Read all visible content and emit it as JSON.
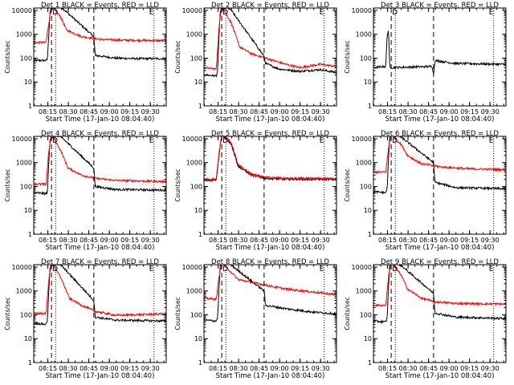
{
  "figure": {
    "title_template": "Det {n} BLACK = Events, RED = LLD",
    "xlabel": "Start Time (17-Jan-10 08:04:40)",
    "ylabel": "Counts/sec",
    "x_ticks": [
      "08:15",
      "08:30",
      "08:45",
      "09:00",
      "09:15",
      "09:30"
    ],
    "y_ticks": [
      "1",
      "10",
      "100",
      "1000",
      "10000"
    ],
    "markers": [
      "D",
      "E"
    ],
    "colors": {
      "events": "#000000",
      "lld": "#ff0000",
      "axes": "#000000",
      "background": "#ffffff"
    }
  },
  "chart_data": [
    {
      "type": "line",
      "title": "Det 1 BLACK = Events, RED = LLD",
      "det": "1",
      "xlabel": "Start Time (17-Jan-10 08:04:40)",
      "ylabel": "Counts/sec",
      "ylim": [
        1,
        10000
      ],
      "yscale": "log",
      "x_range_minutes": [
        0,
        97
      ],
      "dashed_lines_min": [
        13,
        44
      ],
      "dotted_lines_min": [
        16,
        88
      ],
      "series": [
        {
          "name": "BLACK = Events",
          "color": "#000000",
          "values_by_min": [
            [
              0,
              80
            ],
            [
              9,
              80
            ],
            [
              10,
              90
            ],
            [
              11,
              1000
            ],
            [
              12,
              10000
            ],
            [
              16,
              15000
            ],
            [
              20,
              14000
            ],
            [
              44,
              800
            ],
            [
              45,
              130
            ],
            [
              60,
              100
            ],
            [
              75,
              95
            ],
            [
              97,
              95
            ]
          ]
        },
        {
          "name": "RED = LLD",
          "color": "#ff0000",
          "values_by_min": [
            [
              0,
              450
            ],
            [
              9,
              450
            ],
            [
              11,
              3000
            ],
            [
              13,
              15000
            ],
            [
              20,
              5000
            ],
            [
              24,
              1500
            ],
            [
              35,
              800
            ],
            [
              50,
              600
            ],
            [
              70,
              560
            ],
            [
              97,
              540
            ]
          ]
        }
      ]
    },
    {
      "type": "line",
      "title": "Det 2 BLACK = Events, RED = LLD",
      "det": "2",
      "xlabel": "Start Time (17-Jan-10 08:04:40)",
      "ylabel": "Counts/sec",
      "ylim": [
        1,
        10000
      ],
      "yscale": "log",
      "x_range_minutes": [
        0,
        97
      ],
      "dashed_lines_min": [
        13,
        44
      ],
      "dotted_lines_min": [
        16,
        88
      ],
      "series": [
        {
          "name": "BLACK = Events",
          "color": "#000000",
          "values_by_min": [
            [
              0,
              20
            ],
            [
              9,
              18
            ],
            [
              10,
              30
            ],
            [
              11,
              1000
            ],
            [
              12,
              10000
            ],
            [
              16,
              14000
            ],
            [
              20,
              10000
            ],
            [
              44,
              120
            ],
            [
              45,
              60
            ],
            [
              55,
              35
            ],
            [
              70,
              28
            ],
            [
              85,
              33
            ],
            [
              97,
              25
            ]
          ]
        },
        {
          "name": "RED = LLD",
          "color": "#ff0000",
          "values_by_min": [
            [
              0,
              40
            ],
            [
              9,
              35
            ],
            [
              11,
              2000
            ],
            [
              13,
              15000
            ],
            [
              20,
              3000
            ],
            [
              26,
              300
            ],
            [
              35,
              150
            ],
            [
              45,
              100
            ],
            [
              60,
              55
            ],
            [
              70,
              40
            ],
            [
              85,
              55
            ],
            [
              97,
              45
            ]
          ]
        }
      ]
    },
    {
      "type": "line",
      "title": "Det 3 BLACK = Events, RED = LLD",
      "det": "3",
      "xlabel": "Start Time (17-Jan-10 08:04:40)",
      "ylabel": "Counts/sec",
      "ylim": [
        1,
        10000
      ],
      "yscale": "log",
      "x_range_minutes": [
        0,
        97
      ],
      "dashed_lines_min": [
        13,
        44
      ],
      "dotted_lines_min": [
        16,
        88
      ],
      "series": [
        {
          "name": "BLACK = Events",
          "color": "#000000",
          "values_by_min": [
            [
              0,
              40
            ],
            [
              9,
              45
            ],
            [
              10,
              900
            ],
            [
              11,
              1500
            ],
            [
              12,
              40
            ],
            [
              43,
              45
            ],
            [
              44,
              20
            ],
            [
              45,
              80
            ],
            [
              60,
              60
            ],
            [
              97,
              55
            ]
          ]
        }
      ]
    },
    {
      "type": "line",
      "title": "Det 4 BLACK = Events, RED = LLD",
      "det": "4",
      "xlabel": "Start Time (17-Jan-10 08:04:40)",
      "ylabel": "Counts/sec",
      "ylim": [
        1,
        10000
      ],
      "yscale": "log",
      "x_range_minutes": [
        0,
        97
      ],
      "dashed_lines_min": [
        13,
        44
      ],
      "dotted_lines_min": [
        16,
        88
      ],
      "series": [
        {
          "name": "BLACK = Events",
          "color": "#000000",
          "values_by_min": [
            [
              0,
              55
            ],
            [
              9,
              50
            ],
            [
              10,
              60
            ],
            [
              11,
              1000
            ],
            [
              12,
              10000
            ],
            [
              16,
              14000
            ],
            [
              20,
              12000
            ],
            [
              44,
              600
            ],
            [
              45,
              100
            ],
            [
              60,
              75
            ],
            [
              97,
              70
            ]
          ]
        },
        {
          "name": "RED = LLD",
          "color": "#ff0000",
          "values_by_min": [
            [
              0,
              130
            ],
            [
              9,
              120
            ],
            [
              11,
              3000
            ],
            [
              13,
              15000
            ],
            [
              20,
              3000
            ],
            [
              25,
              600
            ],
            [
              35,
              300
            ],
            [
              45,
              220
            ],
            [
              60,
              180
            ],
            [
              97,
              160
            ]
          ]
        }
      ]
    },
    {
      "type": "line",
      "title": "Det 5 BLACK = Events, RED = LLD",
      "det": "5",
      "xlabel": "Start Time (17-Jan-10 08:04:40)",
      "ylabel": "Counts/sec",
      "ylim": [
        1,
        10000
      ],
      "yscale": "log",
      "x_range_minutes": [
        0,
        97
      ],
      "dashed_lines_min": [
        13,
        44
      ],
      "dotted_lines_min": [
        16,
        88
      ],
      "series": [
        {
          "name": "BLACK = Events",
          "color": "#000000",
          "values_by_min": [
            [
              0,
              180
            ],
            [
              9,
              180
            ],
            [
              11,
              2000
            ],
            [
              13,
              15000
            ],
            [
              20,
              6000
            ],
            [
              25,
              700
            ],
            [
              35,
              300
            ],
            [
              45,
              220
            ],
            [
              60,
              200
            ],
            [
              97,
              200
            ]
          ]
        },
        {
          "name": "RED = LLD",
          "color": "#ff0000",
          "values_by_min": [
            [
              0,
              200
            ],
            [
              9,
              200
            ],
            [
              11,
              2500
            ],
            [
              13,
              15000
            ],
            [
              20,
              7000
            ],
            [
              25,
              800
            ],
            [
              35,
              320
            ],
            [
              45,
              240
            ],
            [
              60,
              220
            ],
            [
              97,
              210
            ]
          ]
        }
      ]
    },
    {
      "type": "line",
      "title": "Det 6 BLACK = Events, RED = LLD",
      "det": "6",
      "xlabel": "Start Time (17-Jan-10 08:04:40)",
      "ylabel": "Counts/sec",
      "ylim": [
        1,
        10000
      ],
      "yscale": "log",
      "x_range_minutes": [
        0,
        97
      ],
      "dashed_lines_min": [
        13,
        44
      ],
      "dotted_lines_min": [
        16,
        88
      ],
      "series": [
        {
          "name": "BLACK = Events",
          "color": "#000000",
          "values_by_min": [
            [
              0,
              60
            ],
            [
              9,
              55
            ],
            [
              10,
              80
            ],
            [
              11,
              1500
            ],
            [
              12,
              14000
            ],
            [
              16,
              15000
            ],
            [
              20,
              12000
            ],
            [
              44,
              1000
            ],
            [
              45,
              150
            ],
            [
              60,
              90
            ],
            [
              97,
              80
            ]
          ]
        },
        {
          "name": "RED = LLD",
          "color": "#ff0000",
          "values_by_min": [
            [
              0,
              400
            ],
            [
              9,
              400
            ],
            [
              11,
              4000
            ],
            [
              13,
              15000
            ],
            [
              20,
              6000
            ],
            [
              25,
              2000
            ],
            [
              35,
              900
            ],
            [
              50,
              650
            ],
            [
              70,
              550
            ],
            [
              97,
              500
            ]
          ]
        }
      ]
    },
    {
      "type": "line",
      "title": "Det 7 BLACK = Events, RED = LLD",
      "det": "7",
      "xlabel": "Start Time (17-Jan-10 08:04:40)",
      "ylabel": "Counts/sec",
      "ylim": [
        1,
        10000
      ],
      "yscale": "log",
      "x_range_minutes": [
        0,
        97
      ],
      "dashed_lines_min": [
        13,
        44
      ],
      "dotted_lines_min": [
        16,
        88
      ],
      "series": [
        {
          "name": "BLACK = Events",
          "color": "#000000",
          "values_by_min": [
            [
              0,
              45
            ],
            [
              9,
              40
            ],
            [
              10,
              60
            ],
            [
              11,
              1000
            ],
            [
              12,
              10000
            ],
            [
              16,
              14000
            ],
            [
              20,
              12000
            ],
            [
              44,
              400
            ],
            [
              45,
              80
            ],
            [
              60,
              60
            ],
            [
              97,
              55
            ]
          ]
        },
        {
          "name": "RED = LLD",
          "color": "#ff0000",
          "values_by_min": [
            [
              0,
              120
            ],
            [
              9,
              110
            ],
            [
              11,
              3000
            ],
            [
              13,
              15000
            ],
            [
              20,
              3500
            ],
            [
              26,
              500
            ],
            [
              35,
              250
            ],
            [
              45,
              140
            ],
            [
              60,
              95
            ],
            [
              97,
              110
            ]
          ]
        }
      ]
    },
    {
      "type": "line",
      "title": "Det 8 BLACK = Events, RED = LLD",
      "det": "8",
      "xlabel": "Start Time (17-Jan-10 08:04:40)",
      "ylabel": "Counts/sec",
      "ylim": [
        1,
        10000
      ],
      "yscale": "log",
      "x_range_minutes": [
        0,
        97
      ],
      "dashed_lines_min": [
        13,
        44
      ],
      "dotted_lines_min": [
        16,
        88
      ],
      "series": [
        {
          "name": "BLACK = Events",
          "color": "#000000",
          "values_by_min": [
            [
              0,
              60
            ],
            [
              9,
              55
            ],
            [
              10,
              80
            ],
            [
              11,
              1500
            ],
            [
              12,
              14000
            ],
            [
              16,
              15000
            ],
            [
              20,
              12000
            ],
            [
              44,
              1000
            ],
            [
              45,
              250
            ],
            [
              60,
              180
            ],
            [
              80,
              130
            ],
            [
              97,
              110
            ]
          ]
        },
        {
          "name": "RED = LLD",
          "color": "#ff0000",
          "values_by_min": [
            [
              0,
              500
            ],
            [
              9,
              450
            ],
            [
              11,
              4000
            ],
            [
              13,
              15000
            ],
            [
              20,
              6000
            ],
            [
              25,
              3000
            ],
            [
              40,
              2000
            ],
            [
              60,
              1200
            ],
            [
              80,
              900
            ],
            [
              97,
              700
            ]
          ]
        }
      ]
    },
    {
      "type": "line",
      "title": "Det 9 BLACK = Events, RED = LLD",
      "det": "9",
      "xlabel": "Start Time (17-Jan-10 08:04:40)",
      "ylabel": "Counts/sec",
      "ylim": [
        1,
        10000
      ],
      "yscale": "log",
      "x_range_minutes": [
        0,
        97
      ],
      "dashed_lines_min": [
        13,
        44
      ],
      "dotted_lines_min": [
        16,
        88
      ],
      "series": [
        {
          "name": "BLACK = Events",
          "color": "#000000",
          "values_by_min": [
            [
              0,
              55
            ],
            [
              9,
              50
            ],
            [
              10,
              70
            ],
            [
              11,
              1500
            ],
            [
              12,
              14000
            ],
            [
              16,
              15000
            ],
            [
              20,
              12000
            ],
            [
              44,
              800
            ],
            [
              45,
              120
            ],
            [
              60,
              80
            ],
            [
              97,
              70
            ]
          ]
        },
        {
          "name": "RED = LLD",
          "color": "#ff0000",
          "values_by_min": [
            [
              0,
              250
            ],
            [
              9,
              250
            ],
            [
              11,
              4000
            ],
            [
              13,
              15000
            ],
            [
              20,
              5000
            ],
            [
              25,
              1200
            ],
            [
              35,
              500
            ],
            [
              45,
              350
            ],
            [
              60,
              300
            ],
            [
              97,
              280
            ]
          ]
        }
      ]
    }
  ]
}
